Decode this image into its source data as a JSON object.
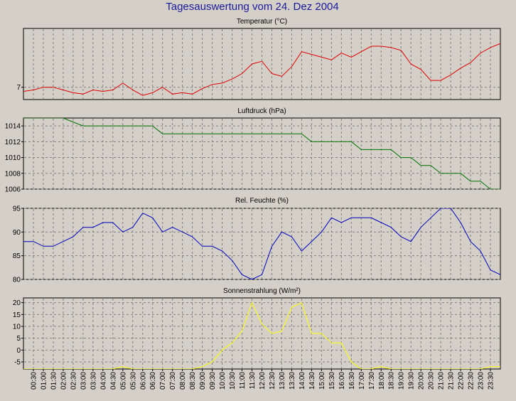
{
  "window": {
    "title": "Tagesauswertung vom 24. Dez 2004"
  },
  "colors": {
    "background": "#d4d0c8",
    "title": "#1a1a9c",
    "grid": "#808080"
  },
  "chart_data": [
    {
      "type": "line",
      "title": "Temperatur (°C)",
      "color": "#e00000",
      "ylim": [
        6.1,
        11.3
      ],
      "yticks": [
        7
      ],
      "x": [
        "00:00",
        "00:30",
        "01:00",
        "01:30",
        "02:00",
        "02:30",
        "03:00",
        "03:30",
        "04:00",
        "04:30",
        "05:00",
        "05:30",
        "06:00",
        "06:30",
        "07:00",
        "07:30",
        "08:00",
        "08:30",
        "09:00",
        "09:30",
        "10:00",
        "10:30",
        "11:00",
        "11:30",
        "12:00",
        "12:30",
        "13:00",
        "13:30",
        "14:00",
        "14:30",
        "15:00",
        "15:30",
        "16:00",
        "16:30",
        "17:00",
        "17:30",
        "18:00",
        "18:30",
        "19:00",
        "19:30",
        "20:00",
        "20:30",
        "21:00",
        "21:30",
        "22:00",
        "22:30",
        "23:00",
        "23:30",
        "24:00"
      ],
      "values": [
        6.7,
        6.8,
        7.0,
        7.0,
        6.8,
        6.6,
        6.5,
        6.8,
        6.7,
        6.8,
        7.3,
        6.8,
        6.4,
        6.6,
        7.0,
        6.5,
        6.6,
        6.5,
        6.9,
        7.2,
        7.3,
        7.6,
        8.0,
        8.7,
        8.9,
        8.0,
        7.8,
        8.5,
        9.6,
        9.4,
        9.2,
        9.0,
        9.5,
        9.2,
        9.6,
        10.0,
        10.0,
        9.9,
        9.7,
        8.7,
        8.3,
        7.5,
        7.5,
        7.9,
        8.4,
        8.8,
        9.5,
        9.9,
        10.2
      ],
      "grid": true
    },
    {
      "type": "line",
      "title": "Luftdruck (hPa)",
      "color": "#007000",
      "ylim": [
        1006,
        1015
      ],
      "yticks": [
        1006,
        1008,
        1010,
        1012,
        1014
      ],
      "x": [
        "00:00",
        "00:30",
        "01:00",
        "01:30",
        "02:00",
        "02:30",
        "03:00",
        "03:30",
        "04:00",
        "04:30",
        "05:00",
        "05:30",
        "06:00",
        "06:30",
        "07:00",
        "07:30",
        "08:00",
        "08:30",
        "09:00",
        "09:30",
        "10:00",
        "10:30",
        "11:00",
        "11:30",
        "12:00",
        "12:30",
        "13:00",
        "13:30",
        "14:00",
        "14:30",
        "15:00",
        "15:30",
        "16:00",
        "16:30",
        "17:00",
        "17:30",
        "18:00",
        "18:30",
        "19:00",
        "19:30",
        "20:00",
        "20:30",
        "21:00",
        "21:30",
        "22:00",
        "22:30",
        "23:00",
        "23:30",
        "24:00"
      ],
      "values": [
        1015,
        1015,
        1015,
        1015,
        1015,
        1014.5,
        1014,
        1014,
        1014,
        1014,
        1014,
        1014,
        1014,
        1014,
        1013,
        1013,
        1013,
        1013,
        1013,
        1013,
        1013,
        1013,
        1013,
        1013,
        1013,
        1013,
        1013,
        1013,
        1013,
        1012,
        1012,
        1012,
        1012,
        1012,
        1011,
        1011,
        1011,
        1011,
        1010,
        1010,
        1009,
        1009,
        1008,
        1008,
        1008,
        1007,
        1007,
        1006,
        1006
      ],
      "grid": true
    },
    {
      "type": "line",
      "title": "Rel. Feuchte (%)",
      "color": "#0000c0",
      "ylim": [
        80,
        95
      ],
      "yticks": [
        80,
        85,
        90,
        95
      ],
      "x": [
        "00:00",
        "00:30",
        "01:00",
        "01:30",
        "02:00",
        "02:30",
        "03:00",
        "03:30",
        "04:00",
        "04:30",
        "05:00",
        "05:30",
        "06:00",
        "06:30",
        "07:00",
        "07:30",
        "08:00",
        "08:30",
        "09:00",
        "09:30",
        "10:00",
        "10:30",
        "11:00",
        "11:30",
        "12:00",
        "12:30",
        "13:00",
        "13:30",
        "14:00",
        "14:30",
        "15:00",
        "15:30",
        "16:00",
        "16:30",
        "17:00",
        "17:30",
        "18:00",
        "18:30",
        "19:00",
        "19:30",
        "20:00",
        "20:30",
        "21:00",
        "21:30",
        "22:00",
        "22:30",
        "23:00",
        "23:30",
        "24:00"
      ],
      "values": [
        88,
        88,
        87,
        87,
        88,
        89,
        91,
        91,
        92,
        92,
        90,
        91,
        94,
        93,
        90,
        91,
        90,
        89,
        87,
        87,
        86,
        84,
        81,
        80,
        81,
        87,
        90,
        89,
        86,
        88,
        90,
        93,
        92,
        93,
        93,
        93,
        92,
        91,
        89,
        88,
        91,
        93,
        95,
        95,
        92,
        88,
        86,
        82,
        81
      ],
      "grid": true
    },
    {
      "type": "line",
      "title": "Sonnenstrahlung (W/m²)",
      "color": "#ffff00",
      "ylim": [
        -8,
        22
      ],
      "yticks": [
        -5,
        0,
        5,
        10,
        15,
        20
      ],
      "x": [
        "00:00",
        "00:30",
        "01:00",
        "01:30",
        "02:00",
        "02:30",
        "03:00",
        "03:30",
        "04:00",
        "04:30",
        "05:00",
        "05:30",
        "06:00",
        "06:30",
        "07:00",
        "07:30",
        "08:00",
        "08:30",
        "09:00",
        "09:30",
        "10:00",
        "10:30",
        "11:00",
        "11:30",
        "12:00",
        "12:30",
        "13:00",
        "13:30",
        "14:00",
        "14:30",
        "15:00",
        "15:30",
        "16:00",
        "16:30",
        "17:00",
        "17:30",
        "18:00",
        "18:30",
        "19:00",
        "19:30",
        "20:00",
        "20:30",
        "21:00",
        "21:30",
        "22:00",
        "22:30",
        "23:00",
        "23:30",
        "24:00"
      ],
      "values": [
        -8,
        -8,
        -8,
        -8,
        -8,
        -8,
        -8,
        -8,
        -8,
        -8,
        -7,
        -8,
        -8,
        -8,
        -8,
        -8,
        -8,
        -8,
        -7,
        -5,
        0,
        3,
        8,
        20,
        11,
        7,
        8,
        18,
        20,
        7,
        7,
        3,
        3,
        -5,
        -8,
        -8,
        -7,
        -8,
        -8,
        -8,
        -8,
        -8,
        -8,
        -8,
        -8,
        -8,
        -8,
        -7,
        -7
      ],
      "grid": true
    }
  ],
  "x_axis": {
    "tick_labels": [
      "00:30",
      "01:00",
      "01:30",
      "02:00",
      "02:30",
      "03:00",
      "03:30",
      "04:00",
      "04:30",
      "05:00",
      "05:30",
      "06:00",
      "06:30",
      "07:00",
      "07:30",
      "08:00",
      "08:30",
      "09:00",
      "09:30",
      "10:00",
      "10:30",
      "11:00",
      "11:30",
      "12:00",
      "12:30",
      "13:00",
      "13:30",
      "14:00",
      "14:30",
      "15:00",
      "15:30",
      "16:00",
      "16:30",
      "17:00",
      "17:30",
      "18:00",
      "18:30",
      "19:00",
      "19:30",
      "20:00",
      "20:30",
      "21:00",
      "21:30",
      "22:00",
      "22:30",
      "23:00",
      "23:30"
    ]
  }
}
